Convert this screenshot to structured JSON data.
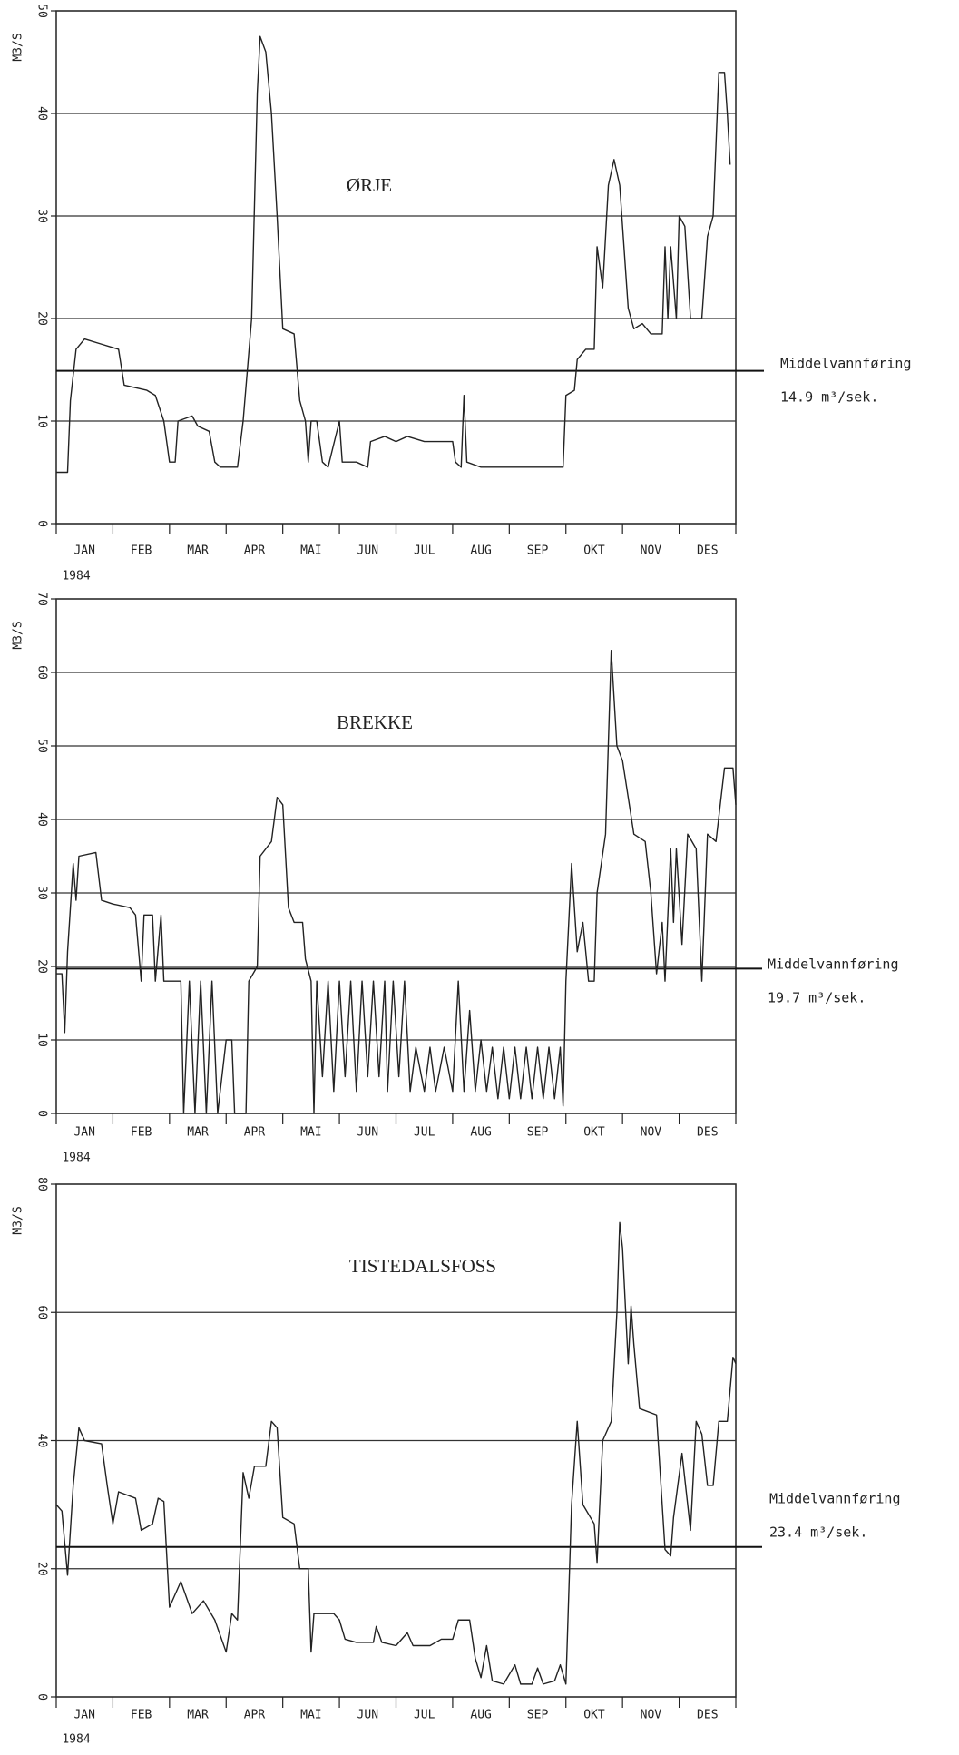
{
  "chart_data": [
    {
      "type": "line",
      "title": "ØRJE",
      "ylabel": "M3/S",
      "xlabel": "1984",
      "categories": [
        "JAN",
        "FEB",
        "MAR",
        "APR",
        "MAI",
        "JUN",
        "JUL",
        "AUG",
        "SEP",
        "OKT",
        "NOV",
        "DES"
      ],
      "xlim": [
        0,
        12
      ],
      "xticks": [
        0,
        1,
        2,
        3,
        4,
        5,
        6,
        7,
        8,
        9,
        10,
        11,
        12
      ],
      "ylim": [
        0,
        50
      ],
      "yticks": [
        0,
        10,
        20,
        30,
        40,
        50
      ],
      "grid": true,
      "color": "#222222",
      "x": [
        0,
        0.2,
        0.25,
        0.35,
        0.5,
        0.8,
        1.1,
        1.2,
        1.6,
        1.75,
        1.9,
        2.0,
        2.1,
        2.15,
        2.4,
        2.5,
        2.7,
        2.8,
        2.9,
        3.2,
        3.3,
        3.45,
        3.55,
        3.6,
        3.7,
        3.8,
        3.9,
        4.0,
        4.2,
        4.3,
        4.4,
        4.45,
        4.5,
        4.6,
        4.7,
        4.8,
        5.0,
        5.05,
        5.3,
        5.5,
        5.55,
        5.8,
        6.0,
        6.2,
        6.5,
        7.0,
        7.05,
        7.15,
        7.2,
        7.25,
        7.5,
        8.0,
        8.5,
        8.95,
        9.0,
        9.15,
        9.2,
        9.35,
        9.5,
        9.55,
        9.65,
        9.75,
        9.85,
        9.95,
        10.1,
        10.2,
        10.35,
        10.5,
        10.7,
        10.75,
        10.8,
        10.85,
        10.95,
        11.0,
        11.1,
        11.2,
        11.4,
        11.5,
        11.6,
        11.7,
        11.8,
        11.85,
        11.9
      ],
      "values": [
        5,
        5,
        12,
        17,
        18,
        17.5,
        17,
        13.5,
        13,
        12.5,
        10,
        6,
        6,
        10,
        10.5,
        9.5,
        9,
        6,
        5.5,
        5.5,
        10,
        20,
        42,
        47.5,
        46,
        40,
        30,
        19,
        18.5,
        12,
        10,
        6,
        10,
        10,
        6,
        5.5,
        10,
        6,
        6,
        5.5,
        8,
        8.5,
        8,
        8.5,
        8,
        8,
        6,
        5.5,
        12.5,
        6,
        5.5,
        5.5,
        5.5,
        5.5,
        12.5,
        13,
        16,
        17,
        17,
        27,
        23,
        33,
        35.5,
        33,
        21,
        19,
        19.5,
        18.5,
        18.5,
        27,
        20,
        27,
        20,
        30,
        29,
        20,
        20,
        28,
        30,
        44,
        44,
        40,
        35
      ],
      "mean": {
        "value": 14.9,
        "label": "Middelvannføring",
        "value_label": "14.9 m³/sek."
      }
    },
    {
      "type": "line",
      "title": "BREKKE",
      "ylabel": "M3/S",
      "xlabel": "1984",
      "categories": [
        "JAN",
        "FEB",
        "MAR",
        "APR",
        "MAI",
        "JUN",
        "JUL",
        "AUG",
        "SEP",
        "OKT",
        "NOV",
        "DES"
      ],
      "xlim": [
        0,
        12
      ],
      "xticks": [
        0,
        1,
        2,
        3,
        4,
        5,
        6,
        7,
        8,
        9,
        10,
        11,
        12
      ],
      "ylim": [
        0,
        70
      ],
      "yticks": [
        0,
        10,
        20,
        30,
        40,
        50,
        60,
        70
      ],
      "grid": true,
      "color": "#222222",
      "x": [
        0,
        0.1,
        0.15,
        0.2,
        0.3,
        0.35,
        0.4,
        0.7,
        0.8,
        1.0,
        1.3,
        1.4,
        1.5,
        1.55,
        1.7,
        1.75,
        1.85,
        1.9,
        2.2,
        2.25,
        2.35,
        2.45,
        2.55,
        2.65,
        2.75,
        2.85,
        3.0,
        3.1,
        3.15,
        3.35,
        3.4,
        3.55,
        3.6,
        3.8,
        3.9,
        4.0,
        4.1,
        4.2,
        4.35,
        4.4,
        4.5,
        4.55,
        4.6,
        4.7,
        4.8,
        4.9,
        5.0,
        5.1,
        5.2,
        5.3,
        5.4,
        5.5,
        5.6,
        5.7,
        5.8,
        5.85,
        5.95,
        6.05,
        6.15,
        6.25,
        6.35,
        6.5,
        6.6,
        6.7,
        6.85,
        7.0,
        7.1,
        7.2,
        7.3,
        7.4,
        7.5,
        7.6,
        7.7,
        7.8,
        7.9,
        8.0,
        8.1,
        8.2,
        8.3,
        8.4,
        8.5,
        8.6,
        8.7,
        8.8,
        8.9,
        8.95,
        9.0,
        9.1,
        9.2,
        9.3,
        9.4,
        9.5,
        9.55,
        9.7,
        9.8,
        9.9,
        10.0,
        10.2,
        10.4,
        10.5,
        10.6,
        10.7,
        10.75,
        10.85,
        10.9,
        10.95,
        11.05,
        11.15,
        11.3,
        11.4,
        11.5,
        11.65,
        11.8,
        11.95,
        12
      ],
      "values": [
        19,
        19,
        11,
        22,
        34,
        29,
        35,
        35.5,
        29,
        28.5,
        28,
        27,
        18,
        27,
        27,
        18,
        27,
        18,
        18,
        0,
        18,
        0,
        18,
        0,
        18,
        0,
        10,
        10,
        0,
        0,
        18,
        20,
        35,
        37,
        43,
        42,
        28,
        26,
        26,
        21,
        18,
        0,
        18,
        5,
        18,
        3,
        18,
        5,
        18,
        3,
        18,
        5,
        18,
        5,
        18,
        3,
        18,
        5,
        18,
        3,
        9,
        3,
        9,
        3,
        9,
        3,
        18,
        3,
        14,
        3,
        10,
        3,
        9,
        2,
        9,
        2,
        9,
        2,
        9,
        2,
        9,
        2,
        9,
        2,
        9,
        1,
        18,
        34,
        22,
        26,
        18,
        18,
        30,
        38,
        63,
        50,
        48,
        38,
        37,
        30,
        19,
        26,
        18,
        36,
        26,
        36,
        23,
        38,
        36,
        18,
        38,
        37,
        47,
        47,
        42
      ],
      "mean": {
        "value": 19.7,
        "label": "Middelvannføring",
        "value_label": "19.7 m³/sek."
      }
    },
    {
      "type": "line",
      "title": "TISTEDALSFOSS",
      "ylabel": "M3/S",
      "xlabel": "1984",
      "categories": [
        "JAN",
        "FEB",
        "MAR",
        "APR",
        "MAI",
        "JUN",
        "JUL",
        "AUG",
        "SEP",
        "OKT",
        "NOV",
        "DES"
      ],
      "xlim": [
        0,
        12
      ],
      "xticks": [
        0,
        1,
        2,
        3,
        4,
        5,
        6,
        7,
        8,
        9,
        10,
        11,
        12
      ],
      "ylim": [
        0,
        80
      ],
      "yticks": [
        0,
        20,
        40,
        60,
        80
      ],
      "grid": true,
      "color": "#222222",
      "x": [
        0,
        0.1,
        0.2,
        0.3,
        0.4,
        0.5,
        0.8,
        0.9,
        1.0,
        1.1,
        1.4,
        1.5,
        1.7,
        1.8,
        1.9,
        2.0,
        2.2,
        2.4,
        2.6,
        2.8,
        3.0,
        3.1,
        3.2,
        3.3,
        3.4,
        3.5,
        3.7,
        3.8,
        3.9,
        4.0,
        4.2,
        4.3,
        4.45,
        4.5,
        4.55,
        4.9,
        5.0,
        5.1,
        5.3,
        5.6,
        5.65,
        5.75,
        6.0,
        6.2,
        6.3,
        6.6,
        6.8,
        7.0,
        7.1,
        7.3,
        7.4,
        7.5,
        7.6,
        7.7,
        7.9,
        8.1,
        8.2,
        8.4,
        8.5,
        8.6,
        8.8,
        8.9,
        9.0,
        9.1,
        9.2,
        9.3,
        9.5,
        9.55,
        9.65,
        9.8,
        9.9,
        9.95,
        10.0,
        10.1,
        10.15,
        10.2,
        10.3,
        10.6,
        10.75,
        10.85,
        10.9,
        11.05,
        11.2,
        11.3,
        11.4,
        11.5,
        11.6,
        11.7,
        11.85,
        11.95,
        12
      ],
      "values": [
        30,
        29,
        19,
        33,
        42,
        40,
        39.5,
        33,
        27,
        32,
        31,
        26,
        27,
        31,
        30.5,
        14,
        18,
        13,
        15,
        12,
        7,
        13,
        12,
        35,
        31,
        36,
        36,
        43,
        42,
        28,
        27,
        20,
        20,
        7,
        13,
        13,
        12,
        9,
        8.5,
        8.5,
        11,
        8.5,
        8,
        10,
        8,
        8,
        9,
        9,
        12,
        12,
        6,
        3,
        8,
        2.5,
        2,
        5,
        2,
        2,
        4.5,
        2,
        2.5,
        5,
        2,
        30,
        43,
        30,
        27,
        21,
        40,
        43,
        60,
        74,
        70,
        52,
        61,
        55,
        45,
        44,
        23,
        22,
        28,
        38,
        26,
        43,
        41,
        33,
        33,
        43,
        43,
        53,
        52
      ],
      "mean": {
        "value": 23.4,
        "label": "Middelvannføring",
        "value_label": "23.4 m³/sek."
      }
    }
  ]
}
